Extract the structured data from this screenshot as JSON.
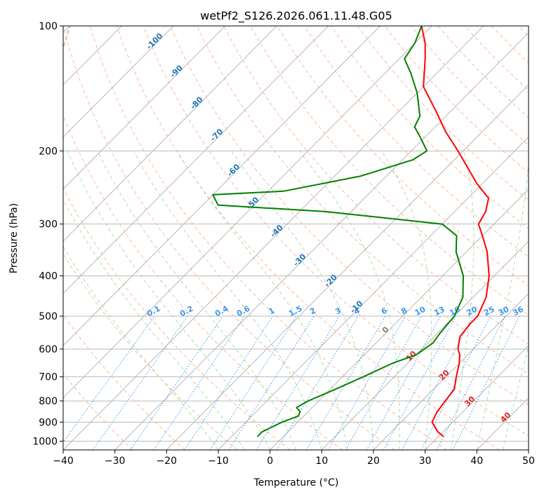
{
  "chart_data": {
    "type": "line",
    "subtype": "skew-t log-p sounding",
    "title": "wetPf2_S126.2026.061.11.48.G05",
    "xlabel": "Temperature (°C)",
    "ylabel": "Pressure (hPa)",
    "xlim": [
      -40,
      50
    ],
    "ylim": [
      1050,
      100
    ],
    "xticks": [
      -40,
      -30,
      -20,
      -10,
      0,
      10,
      20,
      30,
      40,
      50
    ],
    "yticks": [
      1000,
      900,
      800,
      700,
      600,
      500,
      400,
      300,
      200,
      100
    ],
    "xtick_labels": [
      "−40",
      "−30",
      "−20",
      "−10",
      "0",
      "10",
      "20",
      "30",
      "40",
      "50"
    ],
    "ytick_labels": [
      "1000",
      "900",
      "800",
      "700",
      "600",
      "500",
      "400",
      "300",
      "200",
      "100"
    ],
    "grid": true,
    "colors": {
      "temperature": "#ff0000",
      "dewpoint": "#008000",
      "isotherm": "#b0b0b0",
      "dry_adiabat": "#ffb090",
      "moist_adiabat": "#a8d8a8",
      "mixing_ratio": "#3c96f0",
      "pressure_grid": "#b0b0b0",
      "lfc_arc": "#d8c0a0",
      "isotherm_label_cold": "#1f77b4",
      "isotherm_label_zero": "#808080",
      "isotherm_label_warm": "#d62728"
    },
    "series": [
      {
        "name": "Temperature",
        "color": "#ff0000",
        "points": [
          {
            "p": 975,
            "t": 31
          },
          {
            "p": 950,
            "t": 29
          },
          {
            "p": 900,
            "t": 26
          },
          {
            "p": 850,
            "t": 25
          },
          {
            "p": 800,
            "t": 24.5
          },
          {
            "p": 750,
            "t": 24
          },
          {
            "p": 700,
            "t": 22
          },
          {
            "p": 650,
            "t": 20
          },
          {
            "p": 620,
            "t": 18.5
          },
          {
            "p": 600,
            "t": 17
          },
          {
            "p": 560,
            "t": 15
          },
          {
            "p": 520,
            "t": 14.5
          },
          {
            "p": 500,
            "t": 14.5
          },
          {
            "p": 450,
            "t": 12.5
          },
          {
            "p": 400,
            "t": 9
          },
          {
            "p": 350,
            "t": 4
          },
          {
            "p": 320,
            "t": 0
          },
          {
            "p": 300,
            "t": -3
          },
          {
            "p": 280,
            "t": -4
          },
          {
            "p": 260,
            "t": -6
          },
          {
            "p": 240,
            "t": -11
          },
          {
            "p": 200,
            "t": -21
          },
          {
            "p": 180,
            "t": -27
          },
          {
            "p": 160,
            "t": -33
          },
          {
            "p": 140,
            "t": -40
          },
          {
            "p": 120,
            "t": -45
          },
          {
            "p": 110,
            "t": -48
          },
          {
            "p": 100,
            "t": -52
          }
        ]
      },
      {
        "name": "Dewpoint",
        "color": "#008000",
        "points": [
          {
            "p": 975,
            "t": -5
          },
          {
            "p": 950,
            "t": -5
          },
          {
            "p": 900,
            "t": -3
          },
          {
            "p": 870,
            "t": -1
          },
          {
            "p": 850,
            "t": -1.5
          },
          {
            "p": 830,
            "t": -3
          },
          {
            "p": 800,
            "t": -2
          },
          {
            "p": 750,
            "t": 1
          },
          {
            "p": 700,
            "t": 4
          },
          {
            "p": 650,
            "t": 7
          },
          {
            "p": 620,
            "t": 10
          },
          {
            "p": 580,
            "t": 11
          },
          {
            "p": 550,
            "t": 10.5
          },
          {
            "p": 500,
            "t": 10
          },
          {
            "p": 450,
            "t": 8
          },
          {
            "p": 400,
            "t": 4
          },
          {
            "p": 350,
            "t": -2
          },
          {
            "p": 320,
            "t": -5
          },
          {
            "p": 300,
            "t": -10
          },
          {
            "p": 280,
            "t": -35
          },
          {
            "p": 270,
            "t": -57
          },
          {
            "p": 255,
            "t": -60
          },
          {
            "p": 250,
            "t": -47
          },
          {
            "p": 230,
            "t": -35
          },
          {
            "p": 210,
            "t": -28
          },
          {
            "p": 200,
            "t": -27
          },
          {
            "p": 185,
            "t": -31
          },
          {
            "p": 175,
            "t": -34
          },
          {
            "p": 165,
            "t": -35
          },
          {
            "p": 145,
            "t": -40
          },
          {
            "p": 130,
            "t": -45
          },
          {
            "p": 120,
            "t": -49
          },
          {
            "p": 110,
            "t": -50
          },
          {
            "p": 100,
            "t": -52
          }
        ]
      }
    ],
    "isotherm_labels": [
      {
        "text": "-100",
        "p": 110,
        "t": -100
      },
      {
        "text": "-90",
        "p": 130,
        "t": -90
      },
      {
        "text": "-80",
        "p": 155,
        "t": -80
      },
      {
        "text": "-70",
        "p": 185,
        "t": -70
      },
      {
        "text": "-60",
        "p": 225,
        "t": -60
      },
      {
        "text": "-50",
        "p": 270,
        "t": -50
      },
      {
        "text": "-40",
        "p": 315,
        "t": -40
      },
      {
        "text": "-30",
        "p": 370,
        "t": -30
      },
      {
        "text": "-20",
        "p": 415,
        "t": -20
      },
      {
        "text": "-10",
        "p": 480,
        "t": -10
      },
      {
        "text": "0",
        "p": 545,
        "t": 0
      },
      {
        "text": "10",
        "p": 630,
        "t": 10
      },
      {
        "text": "20",
        "p": 700,
        "t": 20
      },
      {
        "text": "30",
        "p": 810,
        "t": 30
      },
      {
        "text": "40",
        "p": 885,
        "t": 40
      }
    ],
    "mixing_ratio_labels": [
      "0.1",
      "0.2",
      "0.4",
      "0.6",
      "1",
      "1.5",
      "2",
      "3",
      "4",
      "6",
      "8",
      "10",
      "13",
      "16",
      "20",
      "25",
      "30",
      "36"
    ],
    "mixing_ratio_label_pressure": 500
  }
}
